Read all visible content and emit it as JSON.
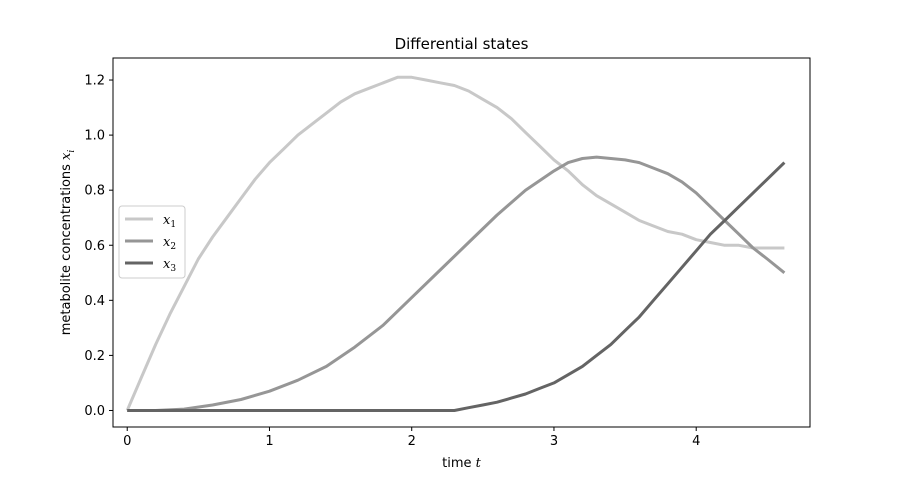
{
  "chart_data": {
    "type": "line",
    "title": "Differential states",
    "xlabel_text": "time ",
    "xlabel_var": "t",
    "ylabel_text": "metabolite concentrations ",
    "ylabel_var": "x",
    "ylabel_sub": "i",
    "xlim": [
      -0.1,
      4.8
    ],
    "ylim": [
      -0.06,
      1.28
    ],
    "xticks": [
      0,
      1,
      2,
      3,
      4
    ],
    "xtick_labels": [
      "0",
      "1",
      "2",
      "3",
      "4"
    ],
    "yticks": [
      0.0,
      0.2,
      0.4,
      0.6,
      0.8,
      1.0,
      1.2
    ],
    "ytick_labels": [
      "0.0",
      "0.2",
      "0.4",
      "0.6",
      "0.8",
      "1.0",
      "1.2"
    ],
    "grid": false,
    "legend_position": "center-left",
    "series": [
      {
        "name": "x",
        "sub": "1",
        "color": "#c8c8c8",
        "x": [
          0,
          0.1,
          0.2,
          0.3,
          0.4,
          0.5,
          0.6,
          0.7,
          0.8,
          0.9,
          1.0,
          1.1,
          1.2,
          1.3,
          1.4,
          1.5,
          1.6,
          1.7,
          1.8,
          1.9,
          2.0,
          2.1,
          2.2,
          2.3,
          2.4,
          2.5,
          2.6,
          2.7,
          2.8,
          2.9,
          3.0,
          3.1,
          3.2,
          3.3,
          3.4,
          3.5,
          3.6,
          3.7,
          3.8,
          3.9,
          4.0,
          4.1,
          4.2,
          4.3,
          4.4,
          4.5,
          4.62
        ],
        "y": [
          0.0,
          0.12,
          0.24,
          0.35,
          0.45,
          0.55,
          0.63,
          0.7,
          0.77,
          0.84,
          0.9,
          0.95,
          1.0,
          1.04,
          1.08,
          1.12,
          1.15,
          1.17,
          1.19,
          1.21,
          1.21,
          1.2,
          1.19,
          1.18,
          1.16,
          1.13,
          1.1,
          1.06,
          1.01,
          0.96,
          0.91,
          0.87,
          0.82,
          0.78,
          0.75,
          0.72,
          0.69,
          0.67,
          0.65,
          0.64,
          0.62,
          0.61,
          0.6,
          0.6,
          0.59,
          0.59,
          0.59
        ]
      },
      {
        "name": "x",
        "sub": "2",
        "color": "#969696",
        "x": [
          0,
          0.2,
          0.4,
          0.6,
          0.8,
          1.0,
          1.2,
          1.4,
          1.6,
          1.8,
          2.0,
          2.2,
          2.4,
          2.6,
          2.8,
          3.0,
          3.1,
          3.2,
          3.3,
          3.4,
          3.5,
          3.6,
          3.7,
          3.8,
          3.9,
          4.0,
          4.1,
          4.2,
          4.3,
          4.4,
          4.5,
          4.62
        ],
        "y": [
          0.0,
          0.0,
          0.005,
          0.02,
          0.04,
          0.07,
          0.11,
          0.16,
          0.23,
          0.31,
          0.41,
          0.51,
          0.61,
          0.71,
          0.8,
          0.87,
          0.9,
          0.915,
          0.92,
          0.915,
          0.91,
          0.9,
          0.88,
          0.86,
          0.83,
          0.79,
          0.74,
          0.69,
          0.64,
          0.59,
          0.55,
          0.5
        ]
      },
      {
        "name": "x",
        "sub": "3",
        "color": "#646464",
        "x": [
          0,
          0.5,
          1.0,
          1.5,
          2.0,
          2.3,
          2.4,
          2.5,
          2.6,
          2.7,
          2.8,
          2.9,
          3.0,
          3.1,
          3.2,
          3.3,
          3.4,
          3.5,
          3.6,
          3.7,
          3.8,
          3.9,
          4.0,
          4.1,
          4.2,
          4.3,
          4.4,
          4.5,
          4.62
        ],
        "y": [
          0.0,
          0.0,
          0.0,
          0.0,
          0.0,
          0.0,
          0.01,
          0.02,
          0.03,
          0.045,
          0.06,
          0.08,
          0.1,
          0.13,
          0.16,
          0.2,
          0.24,
          0.29,
          0.34,
          0.4,
          0.46,
          0.52,
          0.58,
          0.64,
          0.69,
          0.74,
          0.79,
          0.84,
          0.9
        ]
      }
    ]
  }
}
